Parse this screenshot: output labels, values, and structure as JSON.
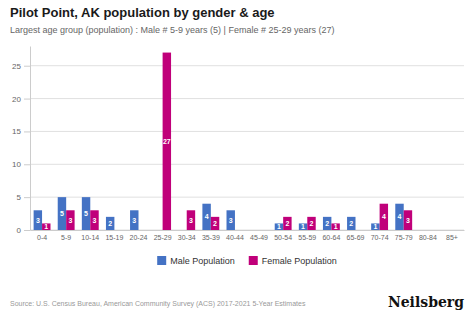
{
  "chart_data": {
    "type": "bar",
    "title": "Pilot Point, AK population by gender & age",
    "subtitle": "Largest age group (population) : Male # 5-9 years (5) | Female # 25-29 years (27)",
    "source": "Source: U.S. Census Bureau, American Community Survey (ACS) 2017-2021 5-Year Estimates",
    "annotations": [
      "Neilsberg"
    ],
    "categories": [
      "0-4",
      "5-9",
      "10-14",
      "15-19",
      "20-24",
      "25-29",
      "30-34",
      "35-39",
      "40-44",
      "45-49",
      "50-54",
      "55-59",
      "60-64",
      "65-69",
      "70-74",
      "75-79",
      "80-84",
      "85+"
    ],
    "series": [
      {
        "name": "Male Population",
        "color": "#4472c4",
        "values": [
          3,
          5,
          5,
          2,
          3,
          0,
          0,
          4,
          3,
          0,
          1,
          1,
          2,
          2,
          1,
          4,
          0,
          0
        ],
        "value_labels": [
          "3",
          "5",
          "5",
          "2",
          "3",
          null,
          null,
          "4",
          "3",
          null,
          "1",
          "1",
          "2",
          "2",
          "1",
          "4",
          null,
          null
        ]
      },
      {
        "name": "Female Population",
        "color": "#c0007a",
        "values": [
          1,
          3,
          3,
          0,
          0,
          27,
          3,
          2,
          0,
          0,
          2,
          2,
          1,
          0,
          4,
          3,
          0,
          0
        ],
        "value_labels": [
          "1",
          "3",
          "3",
          null,
          null,
          "27",
          "3",
          "2",
          null,
          null,
          "2",
          "2",
          "1",
          null,
          "4",
          "3",
          null,
          null
        ]
      }
    ],
    "ylim": [
      0,
      28
    ],
    "yticks": [
      0,
      5,
      10,
      15,
      20,
      25
    ],
    "grid": true,
    "legend": "bottom",
    "data_labels": true
  }
}
